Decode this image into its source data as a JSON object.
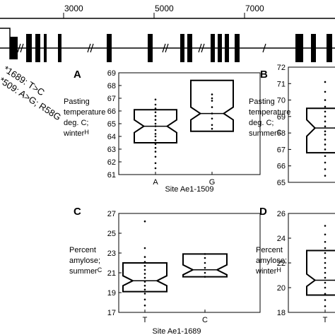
{
  "gene_map": {
    "ruler_ticks": [
      "3000",
      "5000",
      "7000"
    ],
    "snp_labels": [
      "*1689: T>C",
      "*509: A>G; R58G"
    ]
  },
  "chart_data": [
    {
      "id": "A",
      "type": "boxplot",
      "panel_letter": "A",
      "ylabel_lines": [
        "Pasting",
        "temperature",
        "deg. C;",
        "winter"
      ],
      "ylabel_sub": "H",
      "xlabel": "Site Ae1-1509",
      "categories": [
        "A",
        "G"
      ],
      "ylim": [
        61,
        69
      ],
      "yticks": [
        61,
        62,
        63,
        64,
        65,
        66,
        67,
        68,
        69
      ],
      "boxes": [
        {
          "q1": 63.5,
          "median": 64.8,
          "q3": 66.1,
          "notch_low": 64.3,
          "notch_high": 65.3
        },
        {
          "q1": 64.4,
          "median": 65.8,
          "q3": 68.4,
          "notch_low": 65.3,
          "notch_high": 66.3
        }
      ],
      "points": [
        [
          61.5,
          61.9,
          62.4,
          62.8,
          63.1,
          63.4,
          63.7,
          64.0,
          64.2,
          64.5,
          64.8,
          65.0,
          65.3,
          65.6,
          65.9,
          66.2,
          66.5,
          66.9
        ],
        [
          64.6,
          64.9,
          65.4,
          65.8,
          66.3,
          66.8,
          67.0,
          67.3
        ]
      ]
    },
    {
      "id": "B",
      "type": "boxplot",
      "panel_letter": "B",
      "ylabel_lines": [
        "Pasting",
        "temperature",
        "deg. C;",
        "summer"
      ],
      "ylabel_sub": "C",
      "xlabel": "",
      "categories": [],
      "ylim": [
        65,
        72
      ],
      "yticks": [
        65,
        66,
        67,
        68,
        69,
        70,
        71,
        72
      ],
      "boxes": [
        {
          "q1": 66.8,
          "median": 68.3,
          "q3": 69.5,
          "notch_low": 67.8,
          "notch_high": 68.8
        }
      ],
      "points": [
        [
          65.4,
          65.8,
          66.2,
          66.6,
          67.0,
          67.3,
          67.6,
          67.9,
          68.1,
          68.4,
          68.7,
          69.0,
          69.3,
          69.6,
          70.0,
          70.5,
          71.1
        ]
      ]
    },
    {
      "id": "C",
      "type": "boxplot",
      "panel_letter": "C",
      "ylabel_lines": [
        "Percent",
        "amylose;",
        "summer"
      ],
      "ylabel_sub": "C",
      "xlabel": "Site Ae1-1689",
      "categories": [
        "T",
        "C"
      ],
      "ylim": [
        17,
        27
      ],
      "yticks": [
        17,
        19,
        21,
        23,
        25,
        27
      ],
      "boxes": [
        {
          "q1": 19.1,
          "median": 20.2,
          "q3": 22.0,
          "notch_low": 19.7,
          "notch_high": 20.7
        },
        {
          "q1": 20.6,
          "median": 21.3,
          "q3": 22.9,
          "notch_low": 20.8,
          "notch_high": 21.8
        }
      ],
      "points": [
        [
          17.7,
          18.3,
          18.9,
          19.3,
          19.7,
          20.1,
          20.5,
          20.9,
          21.3,
          21.7,
          22.1,
          22.6,
          23.5,
          26.2
        ],
        [
          20.6,
          21.0,
          21.5,
          22.0,
          22.5,
          22.9
        ]
      ]
    },
    {
      "id": "D",
      "type": "boxplot",
      "panel_letter": "D",
      "ylabel_lines": [
        "Percent",
        "amylose;",
        "winter"
      ],
      "ylabel_sub": "H",
      "xlabel": "",
      "categories": [
        "T"
      ],
      "ylim": [
        18,
        26
      ],
      "yticks": [
        18,
        20,
        22,
        24,
        26
      ],
      "boxes": [
        {
          "q1": 19.4,
          "median": 20.6,
          "q3": 23.0,
          "notch_low": 20.1,
          "notch_high": 21.1
        }
      ],
      "points": [
        [
          18.5,
          19.0,
          19.5,
          20.0,
          20.4,
          20.8,
          21.2,
          21.6,
          22.0,
          22.4,
          22.8,
          23.2,
          23.7,
          24.3,
          25.0
        ]
      ]
    }
  ]
}
